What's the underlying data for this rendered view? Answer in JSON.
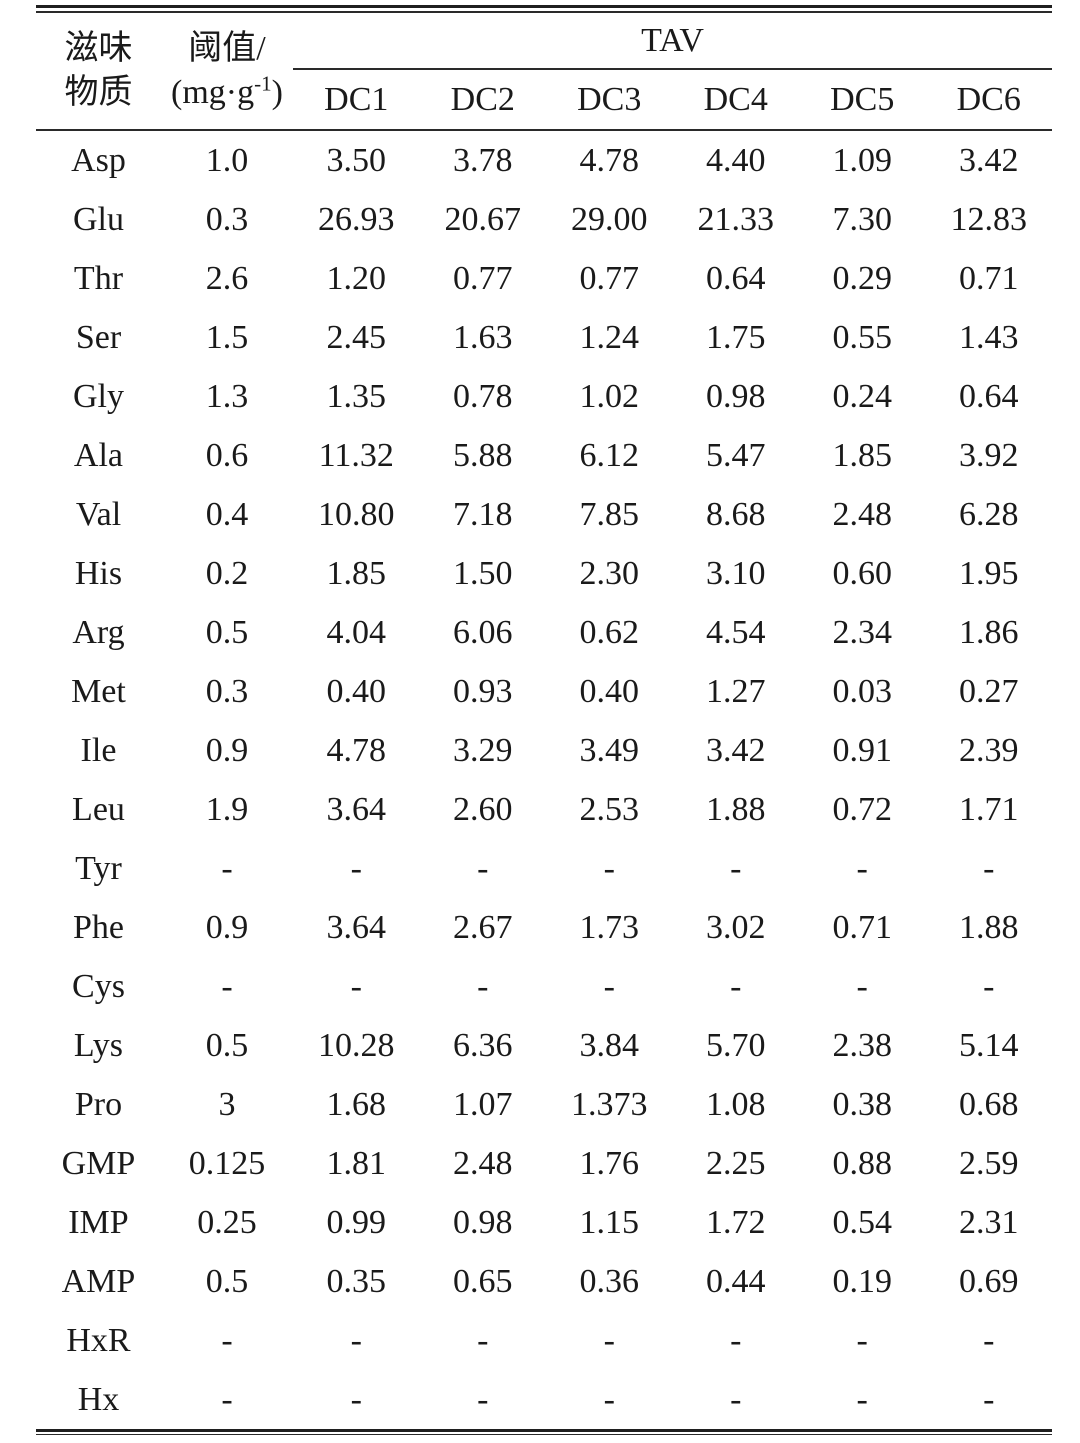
{
  "table": {
    "header": {
      "col1_line1": "滋味",
      "col1_line2": "物质",
      "col2_line1": "阈值/",
      "col2_unit_prefix": "(mg·g",
      "col2_unit_sup": "-1",
      "col2_unit_suffix": ")",
      "span_label": "TAV",
      "dc_columns": [
        "DC1",
        "DC2",
        "DC3",
        "DC4",
        "DC5",
        "DC6"
      ]
    },
    "rows": [
      {
        "substance": "Asp",
        "threshold": "1.0",
        "values": [
          "3.50",
          "3.78",
          "4.78",
          "4.40",
          "1.09",
          "3.42"
        ]
      },
      {
        "substance": "Glu",
        "threshold": "0.3",
        "values": [
          "26.93",
          "20.67",
          "29.00",
          "21.33",
          "7.30",
          "12.83"
        ]
      },
      {
        "substance": "Thr",
        "threshold": "2.6",
        "values": [
          "1.20",
          "0.77",
          "0.77",
          "0.64",
          "0.29",
          "0.71"
        ]
      },
      {
        "substance": "Ser",
        "threshold": "1.5",
        "values": [
          "2.45",
          "1.63",
          "1.24",
          "1.75",
          "0.55",
          "1.43"
        ]
      },
      {
        "substance": "Gly",
        "threshold": "1.3",
        "values": [
          "1.35",
          "0.78",
          "1.02",
          "0.98",
          "0.24",
          "0.64"
        ]
      },
      {
        "substance": "Ala",
        "threshold": "0.6",
        "values": [
          "11.32",
          "5.88",
          "6.12",
          "5.47",
          "1.85",
          "3.92"
        ]
      },
      {
        "substance": "Val",
        "threshold": "0.4",
        "values": [
          "10.80",
          "7.18",
          "7.85",
          "8.68",
          "2.48",
          "6.28"
        ]
      },
      {
        "substance": "His",
        "threshold": "0.2",
        "values": [
          "1.85",
          "1.50",
          "2.30",
          "3.10",
          "0.60",
          "1.95"
        ]
      },
      {
        "substance": "Arg",
        "threshold": "0.5",
        "values": [
          "4.04",
          "6.06",
          "0.62",
          "4.54",
          "2.34",
          "1.86"
        ]
      },
      {
        "substance": "Met",
        "threshold": "0.3",
        "values": [
          "0.40",
          "0.93",
          "0.40",
          "1.27",
          "0.03",
          "0.27"
        ]
      },
      {
        "substance": "Ile",
        "threshold": "0.9",
        "values": [
          "4.78",
          "3.29",
          "3.49",
          "3.42",
          "0.91",
          "2.39"
        ]
      },
      {
        "substance": "Leu",
        "threshold": "1.9",
        "values": [
          "3.64",
          "2.60",
          "2.53",
          "1.88",
          "0.72",
          "1.71"
        ]
      },
      {
        "substance": "Tyr",
        "threshold": "-",
        "values": [
          "-",
          "-",
          "-",
          "-",
          "-",
          "-"
        ]
      },
      {
        "substance": "Phe",
        "threshold": "0.9",
        "values": [
          "3.64",
          "2.67",
          "1.73",
          "3.02",
          "0.71",
          "1.88"
        ]
      },
      {
        "substance": "Cys",
        "threshold": "-",
        "values": [
          "-",
          "-",
          "-",
          "-",
          "-",
          "-"
        ]
      },
      {
        "substance": "Lys",
        "threshold": "0.5",
        "values": [
          "10.28",
          "6.36",
          "3.84",
          "5.70",
          "2.38",
          "5.14"
        ]
      },
      {
        "substance": "Pro",
        "threshold": "3",
        "values": [
          "1.68",
          "1.07",
          "1.373",
          "1.08",
          "0.38",
          "0.68"
        ]
      },
      {
        "substance": "GMP",
        "threshold": "0.125",
        "values": [
          "1.81",
          "2.48",
          "1.76",
          "2.25",
          "0.88",
          "2.59"
        ]
      },
      {
        "substance": "IMP",
        "threshold": "0.25",
        "values": [
          "0.99",
          "0.98",
          "1.15",
          "1.72",
          "0.54",
          "2.31"
        ]
      },
      {
        "substance": "AMP",
        "threshold": "0.5",
        "values": [
          "0.35",
          "0.65",
          "0.36",
          "0.44",
          "0.19",
          "0.69"
        ]
      },
      {
        "substance": "HxR",
        "threshold": "-",
        "values": [
          "-",
          "-",
          "-",
          "-",
          "-",
          "-"
        ]
      },
      {
        "substance": "Hx",
        "threshold": "-",
        "values": [
          "-",
          "-",
          "-",
          "-",
          "-",
          "-"
        ]
      }
    ]
  },
  "colors": {
    "text": "#1a1a1a",
    "rule": "#1f1f1f",
    "background": "#ffffff"
  }
}
